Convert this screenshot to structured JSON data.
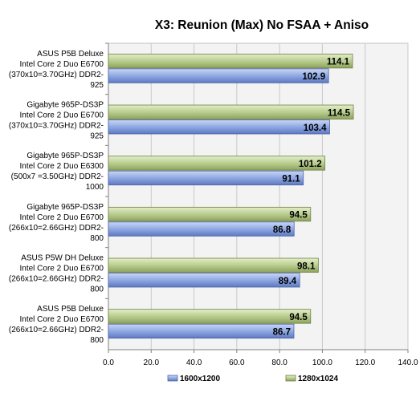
{
  "chart_data": {
    "type": "bar",
    "orientation": "horizontal",
    "title": "X3: Reunion (Max) No FSAA + Aniso",
    "xlabel": "",
    "ylabel": "",
    "xlim": [
      0,
      140
    ],
    "ticks": [
      "0.0",
      "20.0",
      "40.0",
      "60.0",
      "80.0",
      "100.0",
      "120.0",
      "140.0"
    ],
    "grid": true,
    "legend_position": "bottom",
    "categories": [
      [
        "ASUS P5B Deluxe",
        "Intel Core 2 Duo E6700",
        "(370x10=3.70GHz) DDR2-",
        "925"
      ],
      [
        "Gigabyte 965P-DS3P",
        "Intel Core 2 Duo E6700",
        "(370x10=3.70GHz) DDR2-",
        "925"
      ],
      [
        "Gigabyte 965P-DS3P",
        "Intel Core 2 Duo E6300",
        "(500x7 =3.50GHz) DDR2-",
        "1000"
      ],
      [
        "Gigabyte 965P-DS3P",
        "Intel Core 2 Duo E6700",
        "(266x10=2.66GHz) DDR2-",
        "800"
      ],
      [
        "ASUS P5W DH Deluxe",
        "Intel Core 2 Duo E6700",
        "(266x10=2.66GHz) DDR2-",
        "800"
      ],
      [
        "ASUS P5B Deluxe",
        "Intel Core 2 Duo E6700",
        "(266x10=2.66GHz) DDR2-",
        "800"
      ]
    ],
    "series": [
      {
        "name": "1280x1024",
        "color": "#b5c98a",
        "values": [
          114.1,
          114.5,
          101.2,
          94.5,
          98.1,
          94.5
        ]
      },
      {
        "name": "1600x1200",
        "color": "#8aa4e0",
        "values": [
          102.9,
          103.4,
          91.1,
          86.8,
          89.4,
          86.7
        ]
      }
    ],
    "legend": [
      "1600x1200",
      "1280x1024"
    ]
  }
}
